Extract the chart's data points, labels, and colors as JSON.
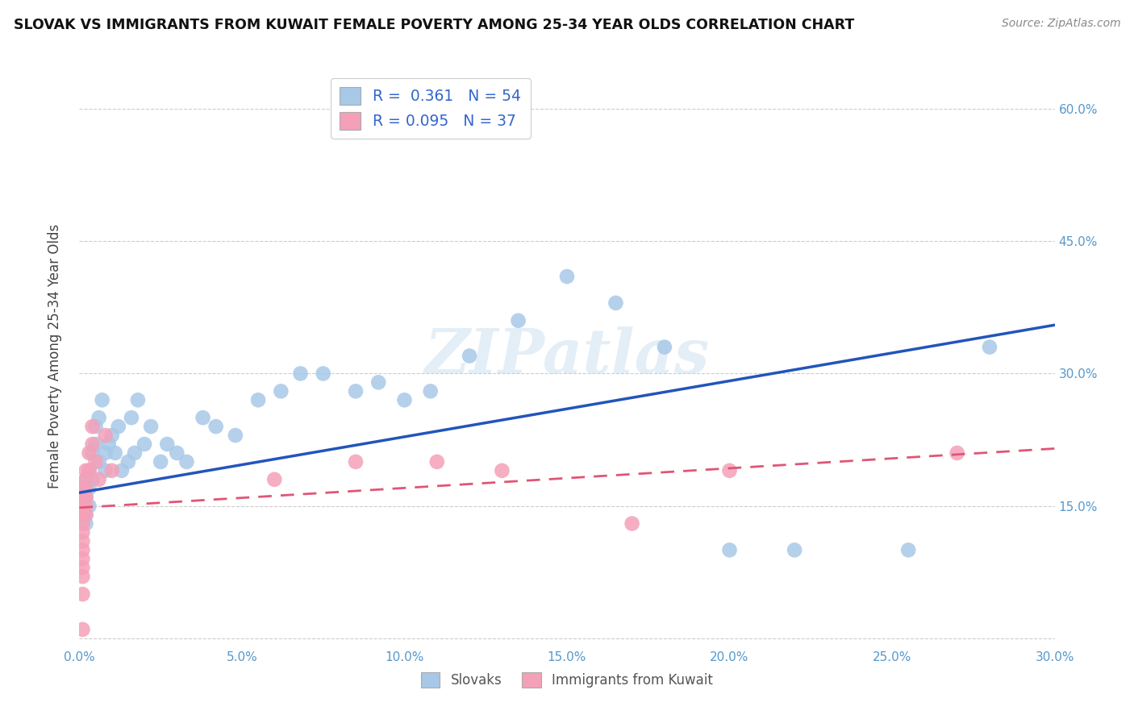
{
  "title": "SLOVAK VS IMMIGRANTS FROM KUWAIT FEMALE POVERTY AMONG 25-34 YEAR OLDS CORRELATION CHART",
  "source": "Source: ZipAtlas.com",
  "ylabel": "Female Poverty Among 25-34 Year Olds",
  "xlim": [
    0.0,
    0.3
  ],
  "ylim": [
    -0.01,
    0.65
  ],
  "group1_label": "Slovaks",
  "group2_label": "Immigrants from Kuwait",
  "group1_color": "#a8c8e8",
  "group2_color": "#f4a0b8",
  "line1_color": "#2255bb",
  "line2_color": "#e05575",
  "background_color": "#ffffff",
  "grid_color": "#cccccc",
  "watermark": "ZIPatlas",
  "legend_r1_text": "R =  0.361",
  "legend_n1_text": "N = 54",
  "legend_r2_text": "R = 0.095",
  "legend_n2_text": "N = 37",
  "slovaks_x": [
    0.001,
    0.001,
    0.001,
    0.002,
    0.002,
    0.002,
    0.002,
    0.003,
    0.003,
    0.003,
    0.004,
    0.004,
    0.005,
    0.005,
    0.006,
    0.006,
    0.007,
    0.008,
    0.008,
    0.009,
    0.01,
    0.011,
    0.012,
    0.013,
    0.015,
    0.016,
    0.017,
    0.018,
    0.02,
    0.022,
    0.025,
    0.027,
    0.03,
    0.033,
    0.038,
    0.042,
    0.048,
    0.055,
    0.062,
    0.068,
    0.075,
    0.085,
    0.092,
    0.1,
    0.108,
    0.12,
    0.135,
    0.15,
    0.165,
    0.18,
    0.2,
    0.22,
    0.255,
    0.28
  ],
  "slovaks_y": [
    0.17,
    0.15,
    0.16,
    0.18,
    0.14,
    0.16,
    0.13,
    0.17,
    0.19,
    0.15,
    0.21,
    0.18,
    0.24,
    0.22,
    0.2,
    0.25,
    0.27,
    0.19,
    0.21,
    0.22,
    0.23,
    0.21,
    0.24,
    0.19,
    0.2,
    0.25,
    0.21,
    0.27,
    0.22,
    0.24,
    0.2,
    0.22,
    0.21,
    0.2,
    0.25,
    0.24,
    0.23,
    0.27,
    0.28,
    0.3,
    0.3,
    0.28,
    0.29,
    0.27,
    0.28,
    0.32,
    0.36,
    0.41,
    0.38,
    0.33,
    0.1,
    0.1,
    0.1,
    0.33
  ],
  "kuwait_x": [
    0.001,
    0.001,
    0.001,
    0.001,
    0.001,
    0.001,
    0.001,
    0.001,
    0.001,
    0.001,
    0.001,
    0.001,
    0.001,
    0.001,
    0.001,
    0.001,
    0.002,
    0.002,
    0.002,
    0.002,
    0.002,
    0.002,
    0.003,
    0.003,
    0.004,
    0.004,
    0.005,
    0.006,
    0.008,
    0.01,
    0.06,
    0.085,
    0.11,
    0.13,
    0.17,
    0.2,
    0.27
  ],
  "kuwait_y": [
    0.17,
    0.16,
    0.15,
    0.14,
    0.13,
    0.16,
    0.15,
    0.14,
    0.12,
    0.11,
    0.1,
    0.09,
    0.08,
    0.07,
    0.05,
    0.01,
    0.19,
    0.18,
    0.17,
    0.16,
    0.15,
    0.14,
    0.21,
    0.19,
    0.22,
    0.24,
    0.2,
    0.18,
    0.23,
    0.19,
    0.18,
    0.2,
    0.2,
    0.19,
    0.13,
    0.19,
    0.21
  ],
  "blue_line_x0": 0.0,
  "blue_line_y0": 0.165,
  "blue_line_x1": 0.3,
  "blue_line_y1": 0.355,
  "pink_line_x0": 0.0,
  "pink_line_y0": 0.148,
  "pink_line_x1": 0.3,
  "pink_line_y1": 0.215
}
